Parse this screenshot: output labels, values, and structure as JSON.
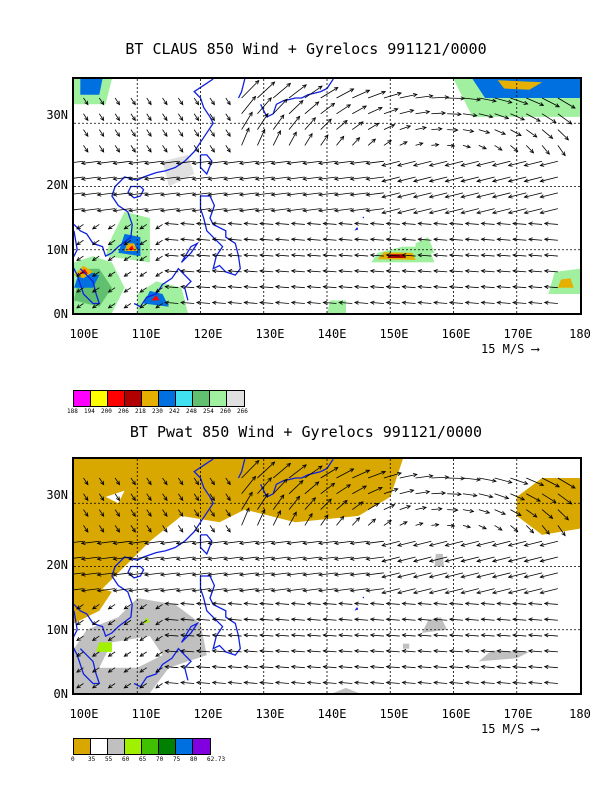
{
  "top": {
    "title": "BT CLAUS 850 Wind + Gyrelocs 991121/0000",
    "y_ticks": [
      "30N",
      "20N",
      "10N",
      "0N"
    ],
    "x_ticks": [
      "100E",
      "110E",
      "120E",
      "130E",
      "140E",
      "150E",
      "160E",
      "170E",
      "180"
    ],
    "scale_label": "15 M/S",
    "colorbar": {
      "colors": [
        "#ff00ff",
        "#ffff00",
        "#ff0000",
        "#b00000",
        "#e6b000",
        "#0070e0",
        "#40e0f0",
        "#60c070",
        "#a0f0a0",
        "#e0e0e0"
      ],
      "labels": [
        "188",
        "194",
        "200",
        "206",
        "218",
        "230",
        "242",
        "248",
        "254",
        "260",
        "266"
      ]
    }
  },
  "bottom": {
    "title": "BT Pwat 850 Wind + Gyrelocs 991121/0000",
    "y_ticks": [
      "30N",
      "20N",
      "10N",
      "0N"
    ],
    "x_ticks": [
      "100E",
      "110E",
      "120E",
      "130E",
      "140E",
      "150E",
      "160E",
      "170E",
      "180"
    ],
    "scale_label": "15 M/S",
    "colorbar": {
      "colors": [
        "#d8a800",
        "#ffffff",
        "#c0c0c0",
        "#a0f000",
        "#40c000",
        "#008000",
        "#0070e0",
        "#8000e0"
      ],
      "labels": [
        "0",
        "35",
        "55",
        "60",
        "65",
        "70",
        "75",
        "80",
        "62.73"
      ]
    }
  },
  "map_extent": {
    "lon": [
      100,
      180
    ],
    "lat": [
      0,
      37
    ]
  }
}
